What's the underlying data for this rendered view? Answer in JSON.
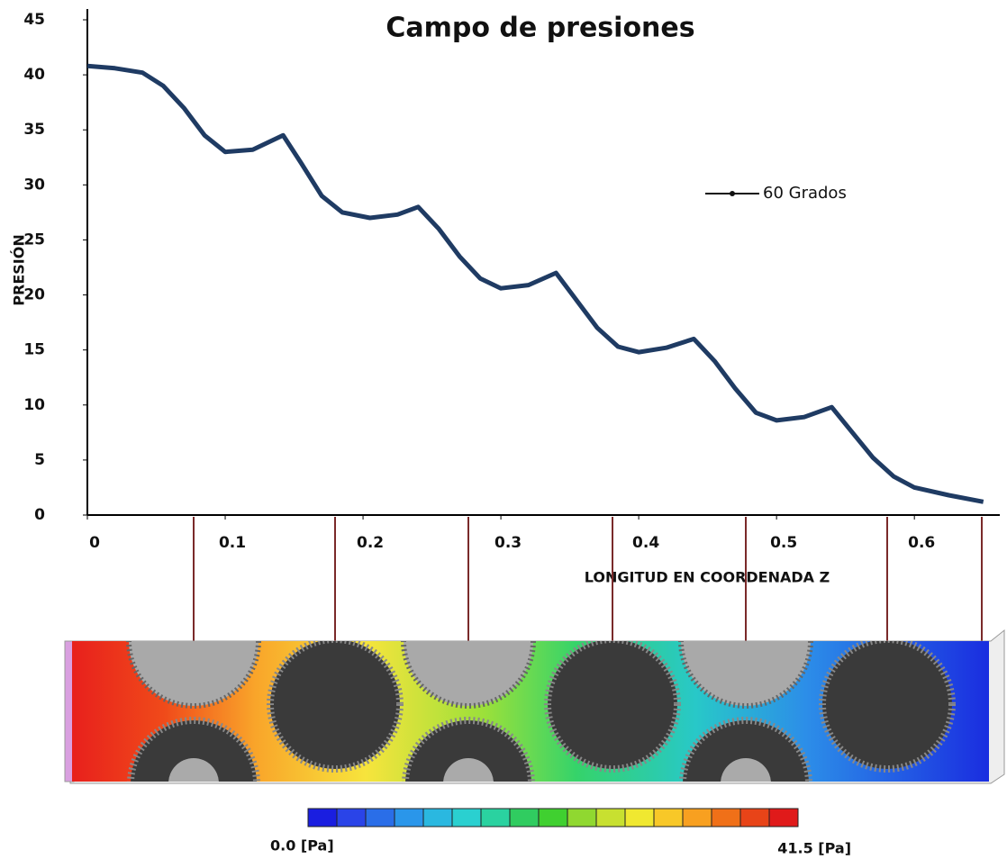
{
  "chart_data": {
    "type": "line",
    "title": "Campo de presiones",
    "x_label": "LONGITUD EN COORDENADA Z",
    "y_label": "PRESIÓN",
    "xlim": [
      0,
      0.66
    ],
    "ylim": [
      0,
      45
    ],
    "xticks": [
      0,
      0.1,
      0.2,
      0.3,
      0.4,
      0.5,
      0.6
    ],
    "yticks": [
      0,
      5,
      10,
      15,
      20,
      25,
      30,
      35,
      40,
      45
    ],
    "legend": "right",
    "series": [
      {
        "name": "60 Grados",
        "color": "#1f3b63",
        "x": [
          0,
          0.02,
          0.04,
          0.055,
          0.07,
          0.085,
          0.1,
          0.12,
          0.142,
          0.155,
          0.17,
          0.185,
          0.205,
          0.225,
          0.24,
          0.255,
          0.27,
          0.285,
          0.3,
          0.32,
          0.34,
          0.355,
          0.37,
          0.385,
          0.4,
          0.42,
          0.44,
          0.455,
          0.47,
          0.485,
          0.5,
          0.52,
          0.54,
          0.555,
          0.57,
          0.585,
          0.6,
          0.625,
          0.65
        ],
        "values": [
          40.8,
          40.6,
          40.2,
          39,
          37,
          34.5,
          33,
          33.2,
          34.5,
          32,
          29,
          27.5,
          27,
          27.3,
          28,
          26,
          23.5,
          21.5,
          20.6,
          20.9,
          22,
          19.5,
          17,
          15.3,
          14.8,
          15.2,
          16,
          14,
          11.5,
          9.3,
          8.6,
          8.9,
          9.8,
          7.5,
          5.2,
          3.5,
          2.5,
          1.8,
          1.2
        ]
      }
    ]
  },
  "contour": {
    "min_label": "0.0 [Pa]",
    "max_label": "41.5 [Pa]"
  }
}
